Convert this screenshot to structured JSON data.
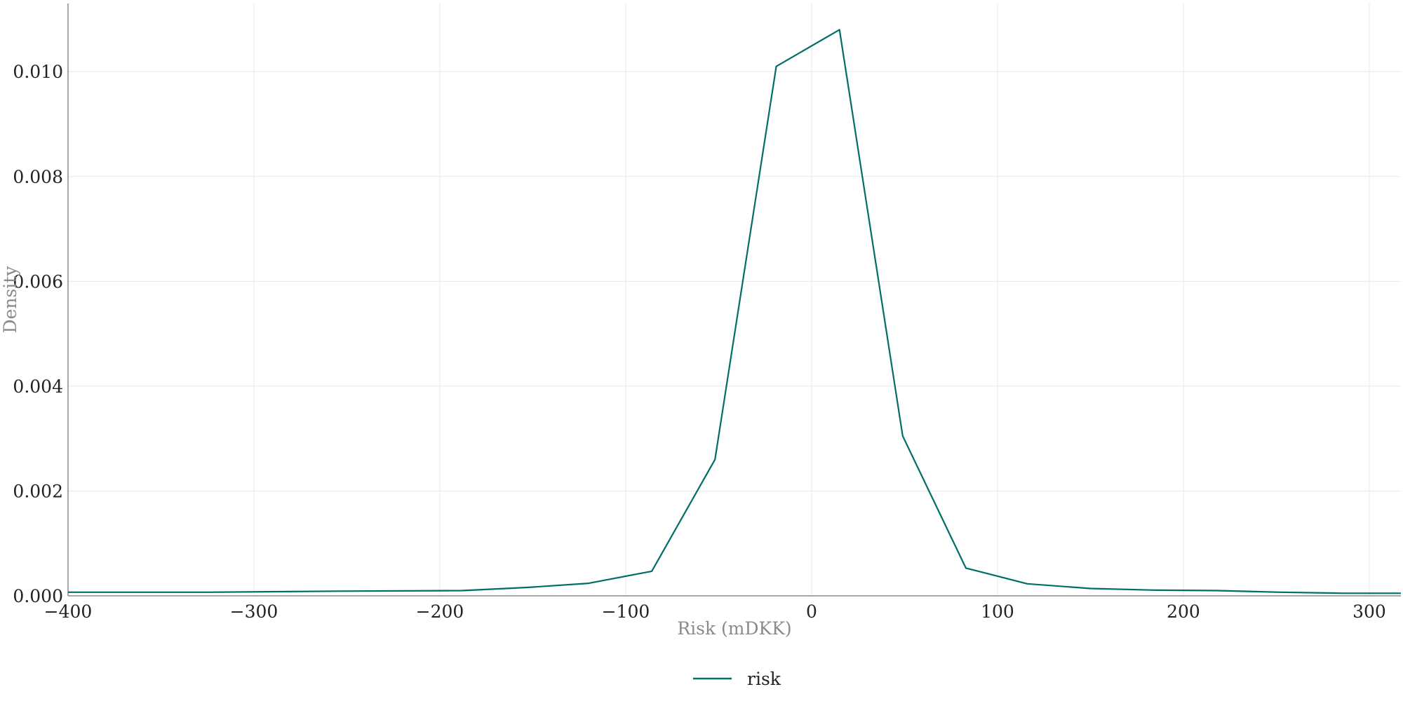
{
  "chart_data": {
    "type": "line",
    "xlabel": "Risk (mDKK)",
    "ylabel": "Density",
    "xlim": [
      -400,
      317
    ],
    "ylim": [
      0,
      0.0113
    ],
    "x_ticks": [
      -400,
      -300,
      -200,
      -100,
      0,
      100,
      200,
      300
    ],
    "x_tick_labels": [
      "−400",
      "−300",
      "−200",
      "−100",
      "0",
      "100",
      "200",
      "300"
    ],
    "y_ticks": [
      0,
      0.002,
      0.004,
      0.006,
      0.008,
      0.01
    ],
    "y_tick_labels": [
      "0.000",
      "0.002",
      "0.004",
      "0.006",
      "0.008",
      "0.010"
    ],
    "grid": true,
    "legend_position": "bottom-center",
    "series": [
      {
        "name": "risk",
        "color": "#006d66",
        "x": [
          -400,
          -325,
          -255,
          -188,
          -153,
          -120,
          -86,
          -52,
          -19,
          15,
          49,
          83,
          116,
          150,
          184,
          218,
          252,
          286,
          317
        ],
        "y": [
          7e-05,
          7e-05,
          9e-05,
          0.0001,
          0.00016,
          0.00024,
          0.00047,
          0.0026,
          0.0101,
          0.0108,
          0.00305,
          0.00053,
          0.00023,
          0.00014,
          0.00011,
          0.0001,
          7e-05,
          5e-05,
          5e-05
        ]
      }
    ]
  }
}
